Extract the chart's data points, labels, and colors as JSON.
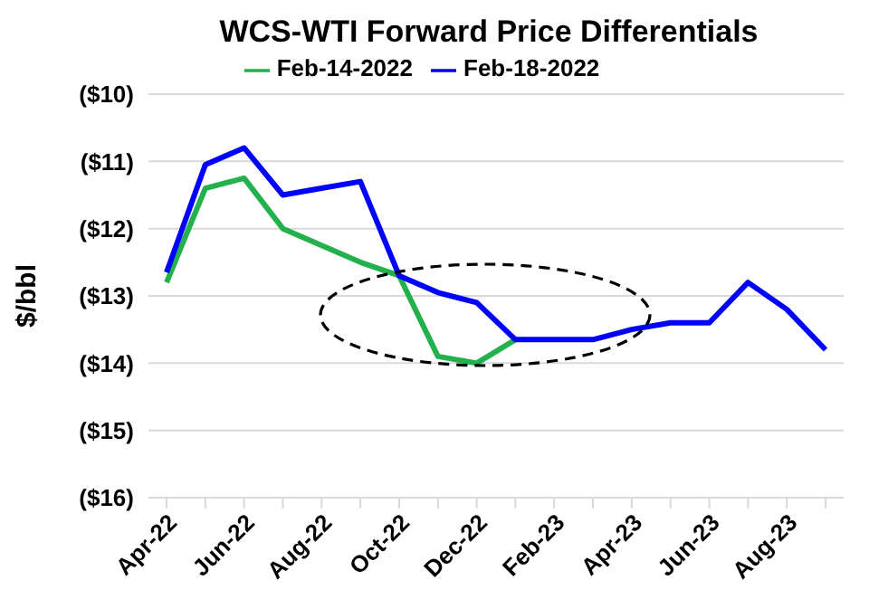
{
  "chart_data": {
    "type": "line",
    "title": "WCS-WTI Forward Price Differentials",
    "ylabel": "$/bbl",
    "categories": [
      "Apr-22",
      null,
      "Jun-22",
      null,
      "Aug-22",
      null,
      "Oct-22",
      null,
      "Dec-22",
      null,
      "Feb-23",
      null,
      "Apr-23",
      null,
      "Jun-23",
      null,
      "Aug-23",
      null
    ],
    "series": [
      {
        "name": "Feb-14-2022",
        "color": "#22b14c",
        "values": [
          -12.8,
          -11.4,
          -11.25,
          -12.0,
          -12.25,
          -12.5,
          -12.7,
          -13.9,
          -14.0,
          -13.65,
          null,
          null,
          null,
          null,
          null,
          null,
          null,
          null
        ]
      },
      {
        "name": "Feb-18-2022",
        "color": "#0000ff",
        "values": [
          -12.65,
          -11.05,
          -10.8,
          -11.5,
          -11.4,
          -11.3,
          -12.7,
          -12.95,
          -13.1,
          -13.65,
          -13.65,
          -13.65,
          -13.5,
          -13.4,
          -13.4,
          -12.8,
          -13.2,
          -13.8
        ]
      }
    ],
    "ylim": [
      -16,
      -10
    ],
    "yticks": [
      {
        "value": -16,
        "label": "($16)"
      },
      {
        "value": -15,
        "label": "($15)"
      },
      {
        "value": -14,
        "label": "($14)"
      },
      {
        "value": -13,
        "label": "($13)"
      },
      {
        "value": -12,
        "label": "($12)"
      },
      {
        "value": -11,
        "label": "($11)"
      },
      {
        "value": -10,
        "label": "($10)"
      }
    ],
    "grid": "y",
    "legend": "top",
    "marker": "none",
    "line_style": "solid"
  }
}
